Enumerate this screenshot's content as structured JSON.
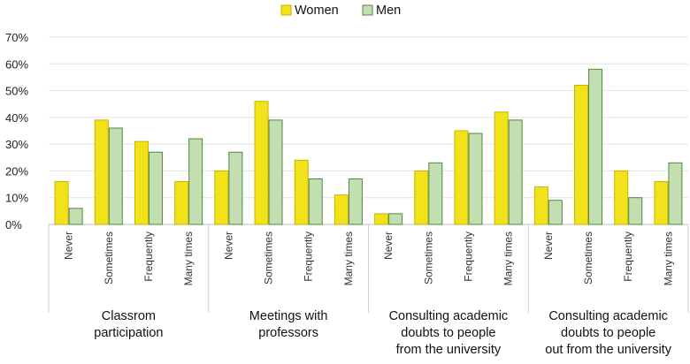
{
  "chart_data": {
    "type": "bar",
    "title": "",
    "xlabel": "",
    "ylabel": "",
    "ylim": [
      0,
      70
    ],
    "ytick_labels": [
      "0%",
      "10%",
      "20%",
      "30%",
      "40%",
      "50%",
      "60%",
      "70%"
    ],
    "grid": true,
    "legend_position": "top-center",
    "colors": {
      "Women": "#f2e21a",
      "Men": "#c3deb1",
      "WomenStroke": "#c9b300",
      "MenStroke": "#4f8a3a"
    },
    "groups": [
      "Classrom participation",
      "Meetings with professors",
      "Consulting academic doubts to people from the university",
      "Consulting academic doubts to people out from the university"
    ],
    "group_label_lines": [
      [
        "Classrom",
        "participation"
      ],
      [
        "Meetings with",
        "professors"
      ],
      [
        "Consulting academic",
        "doubts to people",
        "from the university"
      ],
      [
        "Consulting academic",
        "doubts to people",
        "out from the university"
      ]
    ],
    "categories": [
      "Never",
      "Sometimes",
      "Frequently",
      "Many times",
      "Never",
      "Sometimes",
      "Frequently",
      "Many times",
      "Never",
      "Sometimes",
      "Frequently",
      "Many times",
      "Never",
      "Sometimes",
      "Frequently",
      "Many times"
    ],
    "series": [
      {
        "name": "Women",
        "values": [
          16,
          39,
          31,
          16,
          20,
          46,
          24,
          11,
          4,
          20,
          35,
          42,
          14,
          52,
          20,
          16
        ]
      },
      {
        "name": "Men",
        "values": [
          6,
          36,
          27,
          32,
          27,
          39,
          17,
          17,
          4,
          23,
          34,
          39,
          9,
          58,
          10,
          23
        ]
      }
    ]
  }
}
